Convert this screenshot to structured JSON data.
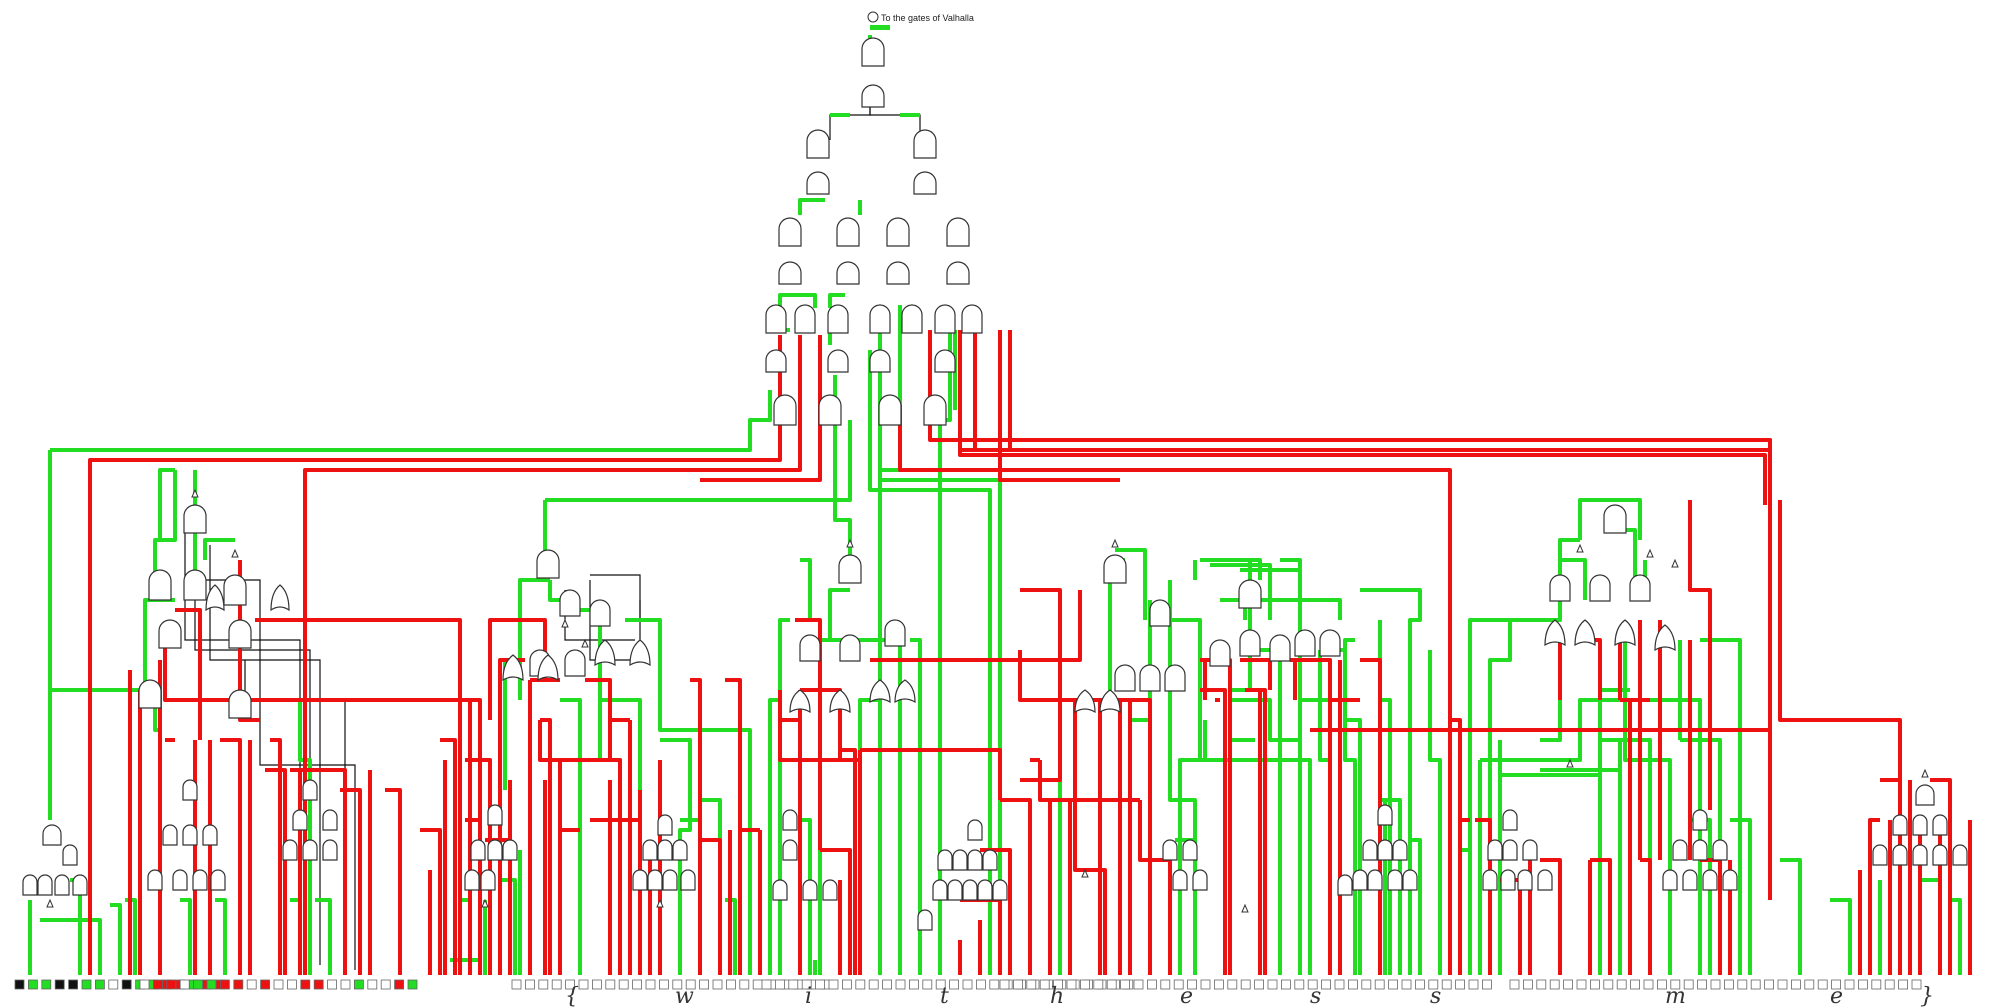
{
  "output": {
    "label": "To the gates of Valhalla"
  },
  "colors": {
    "wire_on": "#22dd22",
    "wire_off": "#ee1111",
    "wire_plain": "#111111",
    "gate_fill": "#ffffff",
    "gate_stroke": "#333333",
    "input_empty": "#ffffff",
    "input_black": "#111111"
  },
  "handwritten_letters": [
    "{",
    "w",
    "i",
    "t",
    "h",
    "e",
    "s",
    "s",
    "_",
    "m",
    "e",
    "}"
  ],
  "input_groups": [
    [
      "black",
      "green",
      "green",
      "black",
      "black",
      "green",
      "green",
      "empty",
      "black",
      "green",
      "green",
      "red",
      "red",
      "green",
      "red",
      "red"
    ],
    [
      "empty",
      "red",
      "red",
      "empty",
      "green",
      "green",
      "red",
      "red",
      "empty",
      "red",
      "empty",
      "empty",
      "red",
      "red",
      "empty",
      "empty",
      "green",
      "empty",
      "empty",
      "red",
      "green"
    ],
    [
      "empty",
      "empty",
      "empty",
      "empty",
      "empty",
      "empty",
      "empty",
      "empty",
      "empty",
      "empty",
      "empty",
      "empty",
      "empty",
      "empty",
      "empty",
      "empty",
      "empty",
      "empty",
      "empty",
      "empty",
      "empty",
      "empty",
      "empty",
      "empty"
    ],
    [
      "empty",
      "empty",
      "empty",
      "empty",
      "empty",
      "empty",
      "empty",
      "empty",
      "empty",
      "empty",
      "empty",
      "empty",
      "empty",
      "empty",
      "empty",
      "empty",
      "empty",
      "empty",
      "empty",
      "empty",
      "empty",
      "empty",
      "empty",
      "empty",
      "empty",
      "empty",
      "empty",
      "empty"
    ],
    [
      "empty",
      "empty",
      "empty",
      "empty",
      "empty",
      "empty",
      "empty",
      "empty",
      "empty",
      "empty",
      "empty",
      "empty",
      "empty",
      "empty",
      "empty",
      "empty",
      "empty",
      "empty",
      "empty",
      "empty",
      "empty",
      "empty",
      "empty",
      "empty",
      "empty",
      "empty",
      "empty",
      "empty",
      "empty",
      "empty",
      "empty",
      "empty",
      "empty",
      "empty",
      "empty",
      "empty",
      "empty"
    ],
    [
      "empty",
      "empty",
      "empty",
      "empty",
      "empty",
      "empty",
      "empty",
      "empty",
      "empty",
      "empty",
      "empty",
      "empty",
      "empty",
      "empty",
      "empty",
      "empty",
      "empty",
      "empty",
      "empty",
      "empty",
      "empty",
      "empty",
      "empty",
      "empty",
      "empty",
      "empty",
      "empty",
      "empty",
      "empty",
      "empty",
      "empty"
    ]
  ]
}
